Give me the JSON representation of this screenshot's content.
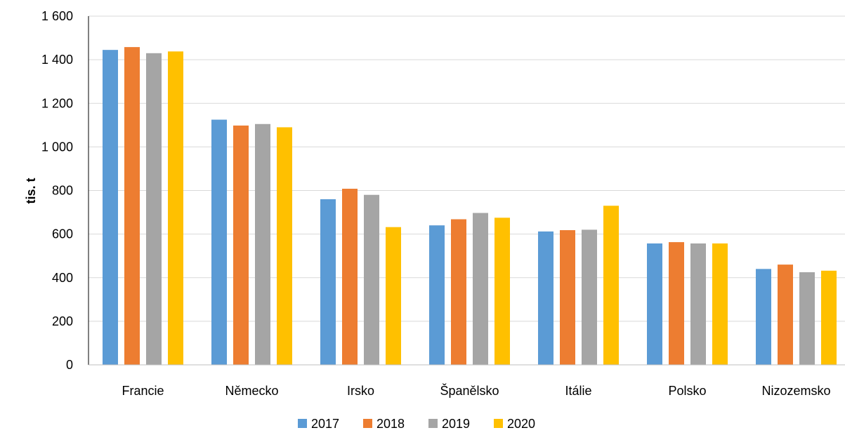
{
  "chart_data": {
    "type": "bar",
    "title": "",
    "xlabel": "",
    "ylabel": "tis. t",
    "ylim": [
      0,
      1600
    ],
    "ytick_step": 200,
    "ytick_labels": [
      "0",
      "200",
      "400",
      "600",
      "800",
      "1 000",
      "1 200",
      "1 400",
      "1 600"
    ],
    "grid": true,
    "legend_position": "bottom",
    "categories": [
      "Francie",
      "Německo",
      "Irsko",
      "Španělsko",
      "Itálie",
      "Polsko",
      "Nizozemsko"
    ],
    "series": [
      {
        "name": "2017",
        "color": "#5B9BD5",
        "values": [
          1445,
          1125,
          760,
          640,
          612,
          557,
          440
        ]
      },
      {
        "name": "2018",
        "color": "#ED7D31",
        "values": [
          1458,
          1098,
          808,
          668,
          618,
          563,
          460
        ]
      },
      {
        "name": "2019",
        "color": "#A5A5A5",
        "values": [
          1430,
          1105,
          780,
          697,
          620,
          557,
          425
        ]
      },
      {
        "name": "2020",
        "color": "#FFC000",
        "values": [
          1438,
          1090,
          632,
          675,
          730,
          557,
          432
        ]
      }
    ]
  }
}
